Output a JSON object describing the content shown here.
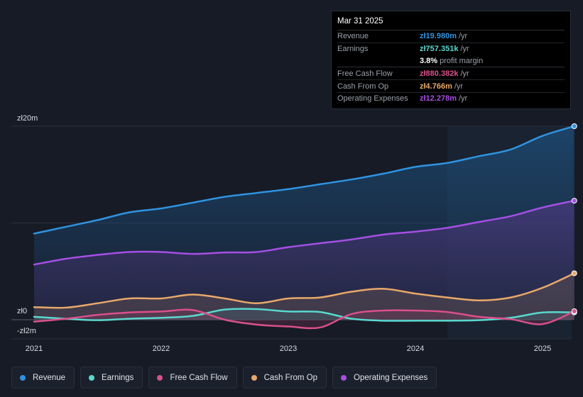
{
  "tooltip": {
    "date": "Mar 31 2025",
    "rows": [
      {
        "label": "Revenue",
        "value": "zł19.980m",
        "unit": "/yr",
        "color": "#2f93e0"
      },
      {
        "label": "Earnings",
        "value": "zł757.351k",
        "unit": "/yr",
        "color": "#5ad8cf"
      },
      {
        "label": "Free Cash Flow",
        "value": "zł880.382k",
        "unit": "/yr",
        "color": "#d9508b"
      },
      {
        "label": "Cash From Op",
        "value": "zł4.766m",
        "unit": "/yr",
        "color": "#e8a86a"
      },
      {
        "label": "Operating Expenses",
        "value": "zł12.278m",
        "unit": "/yr",
        "color": "#a54fe4"
      }
    ],
    "margin_value": "3.8%",
    "margin_label": "profit margin"
  },
  "legend": [
    {
      "label": "Revenue",
      "color": "#2f93e0"
    },
    {
      "label": "Earnings",
      "color": "#5ad8cf"
    },
    {
      "label": "Free Cash Flow",
      "color": "#d9508b"
    },
    {
      "label": "Cash From Op",
      "color": "#e8a86a"
    },
    {
      "label": "Operating Expenses",
      "color": "#a54fe4"
    }
  ],
  "chart_data": {
    "type": "area",
    "title": "",
    "xlabel": "",
    "ylabel": "",
    "ylim": [
      -2,
      20
    ],
    "xlim": [
      2020.96,
      2025.25
    ],
    "y_tick_labels": [
      {
        "value": 20,
        "label": "zł20m"
      },
      {
        "value": 0,
        "label": "zł0"
      },
      {
        "value": -2,
        "label": "-zł2m"
      }
    ],
    "x_tick_labels": [
      {
        "value": 2021,
        "label": "2021"
      },
      {
        "value": 2022,
        "label": "2022"
      },
      {
        "value": 2023,
        "label": "2023"
      },
      {
        "value": 2024,
        "label": "2024"
      },
      {
        "value": 2025,
        "label": "2025"
      }
    ],
    "highlight_start": 2024.25,
    "series": [
      {
        "name": "Revenue",
        "color": "#2f93e0",
        "fill": true,
        "points": [
          [
            2021.0,
            8.9
          ],
          [
            2021.25,
            9.6
          ],
          [
            2021.5,
            10.3
          ],
          [
            2021.75,
            11.1
          ],
          [
            2022.0,
            11.5
          ],
          [
            2022.25,
            12.1
          ],
          [
            2022.5,
            12.7
          ],
          [
            2022.75,
            13.1
          ],
          [
            2023.0,
            13.5
          ],
          [
            2023.25,
            14.0
          ],
          [
            2023.5,
            14.5
          ],
          [
            2023.75,
            15.1
          ],
          [
            2024.0,
            15.8
          ],
          [
            2024.25,
            16.2
          ],
          [
            2024.5,
            16.9
          ],
          [
            2024.75,
            17.6
          ],
          [
            2025.0,
            19.0
          ],
          [
            2025.25,
            20.0
          ]
        ]
      },
      {
        "name": "Operating Expenses",
        "color": "#a54fe4",
        "fill": true,
        "points": [
          [
            2021.0,
            5.7
          ],
          [
            2021.25,
            6.3
          ],
          [
            2021.5,
            6.7
          ],
          [
            2021.75,
            7.0
          ],
          [
            2022.0,
            7.0
          ],
          [
            2022.25,
            6.8
          ],
          [
            2022.5,
            6.95
          ],
          [
            2022.75,
            7.0
          ],
          [
            2023.0,
            7.5
          ],
          [
            2023.25,
            7.9
          ],
          [
            2023.5,
            8.3
          ],
          [
            2023.75,
            8.8
          ],
          [
            2024.0,
            9.1
          ],
          [
            2024.25,
            9.5
          ],
          [
            2024.5,
            10.1
          ],
          [
            2024.75,
            10.7
          ],
          [
            2025.0,
            11.6
          ],
          [
            2025.25,
            12.3
          ]
        ]
      },
      {
        "name": "Cash From Op",
        "color": "#e8a86a",
        "fill": true,
        "points": [
          [
            2021.0,
            1.3
          ],
          [
            2021.25,
            1.25
          ],
          [
            2021.5,
            1.7
          ],
          [
            2021.75,
            2.2
          ],
          [
            2022.0,
            2.2
          ],
          [
            2022.25,
            2.6
          ],
          [
            2022.5,
            2.2
          ],
          [
            2022.75,
            1.7
          ],
          [
            2023.0,
            2.2
          ],
          [
            2023.25,
            2.3
          ],
          [
            2023.5,
            2.9
          ],
          [
            2023.75,
            3.2
          ],
          [
            2024.0,
            2.7
          ],
          [
            2024.25,
            2.3
          ],
          [
            2024.5,
            2.0
          ],
          [
            2024.75,
            2.3
          ],
          [
            2025.0,
            3.3
          ],
          [
            2025.25,
            4.8
          ]
        ]
      },
      {
        "name": "Earnings",
        "color": "#5ad8cf",
        "fill": true,
        "points": [
          [
            2021.0,
            0.3
          ],
          [
            2021.25,
            0.1
          ],
          [
            2021.5,
            -0.05
          ],
          [
            2021.75,
            0.1
          ],
          [
            2022.0,
            0.2
          ],
          [
            2022.25,
            0.4
          ],
          [
            2022.5,
            1.05
          ],
          [
            2022.75,
            1.1
          ],
          [
            2023.0,
            0.85
          ],
          [
            2023.25,
            0.8
          ],
          [
            2023.5,
            0.1
          ],
          [
            2023.75,
            -0.1
          ],
          [
            2024.0,
            -0.1
          ],
          [
            2024.25,
            -0.1
          ],
          [
            2024.5,
            -0.05
          ],
          [
            2024.75,
            0.2
          ],
          [
            2025.0,
            0.75
          ],
          [
            2025.25,
            0.76
          ]
        ]
      },
      {
        "name": "Free Cash Flow",
        "color": "#d9508b",
        "fill": true,
        "points": [
          [
            2021.0,
            -0.2
          ],
          [
            2021.25,
            0.1
          ],
          [
            2021.5,
            0.5
          ],
          [
            2021.75,
            0.75
          ],
          [
            2022.0,
            0.85
          ],
          [
            2022.25,
            1.0
          ],
          [
            2022.5,
            0.0
          ],
          [
            2022.75,
            -0.5
          ],
          [
            2023.0,
            -0.7
          ],
          [
            2023.25,
            -0.8
          ],
          [
            2023.5,
            0.6
          ],
          [
            2023.75,
            0.95
          ],
          [
            2024.0,
            0.95
          ],
          [
            2024.25,
            0.8
          ],
          [
            2024.5,
            0.3
          ],
          [
            2024.75,
            0.05
          ],
          [
            2025.0,
            -0.45
          ],
          [
            2025.25,
            0.88
          ]
        ]
      }
    ]
  }
}
